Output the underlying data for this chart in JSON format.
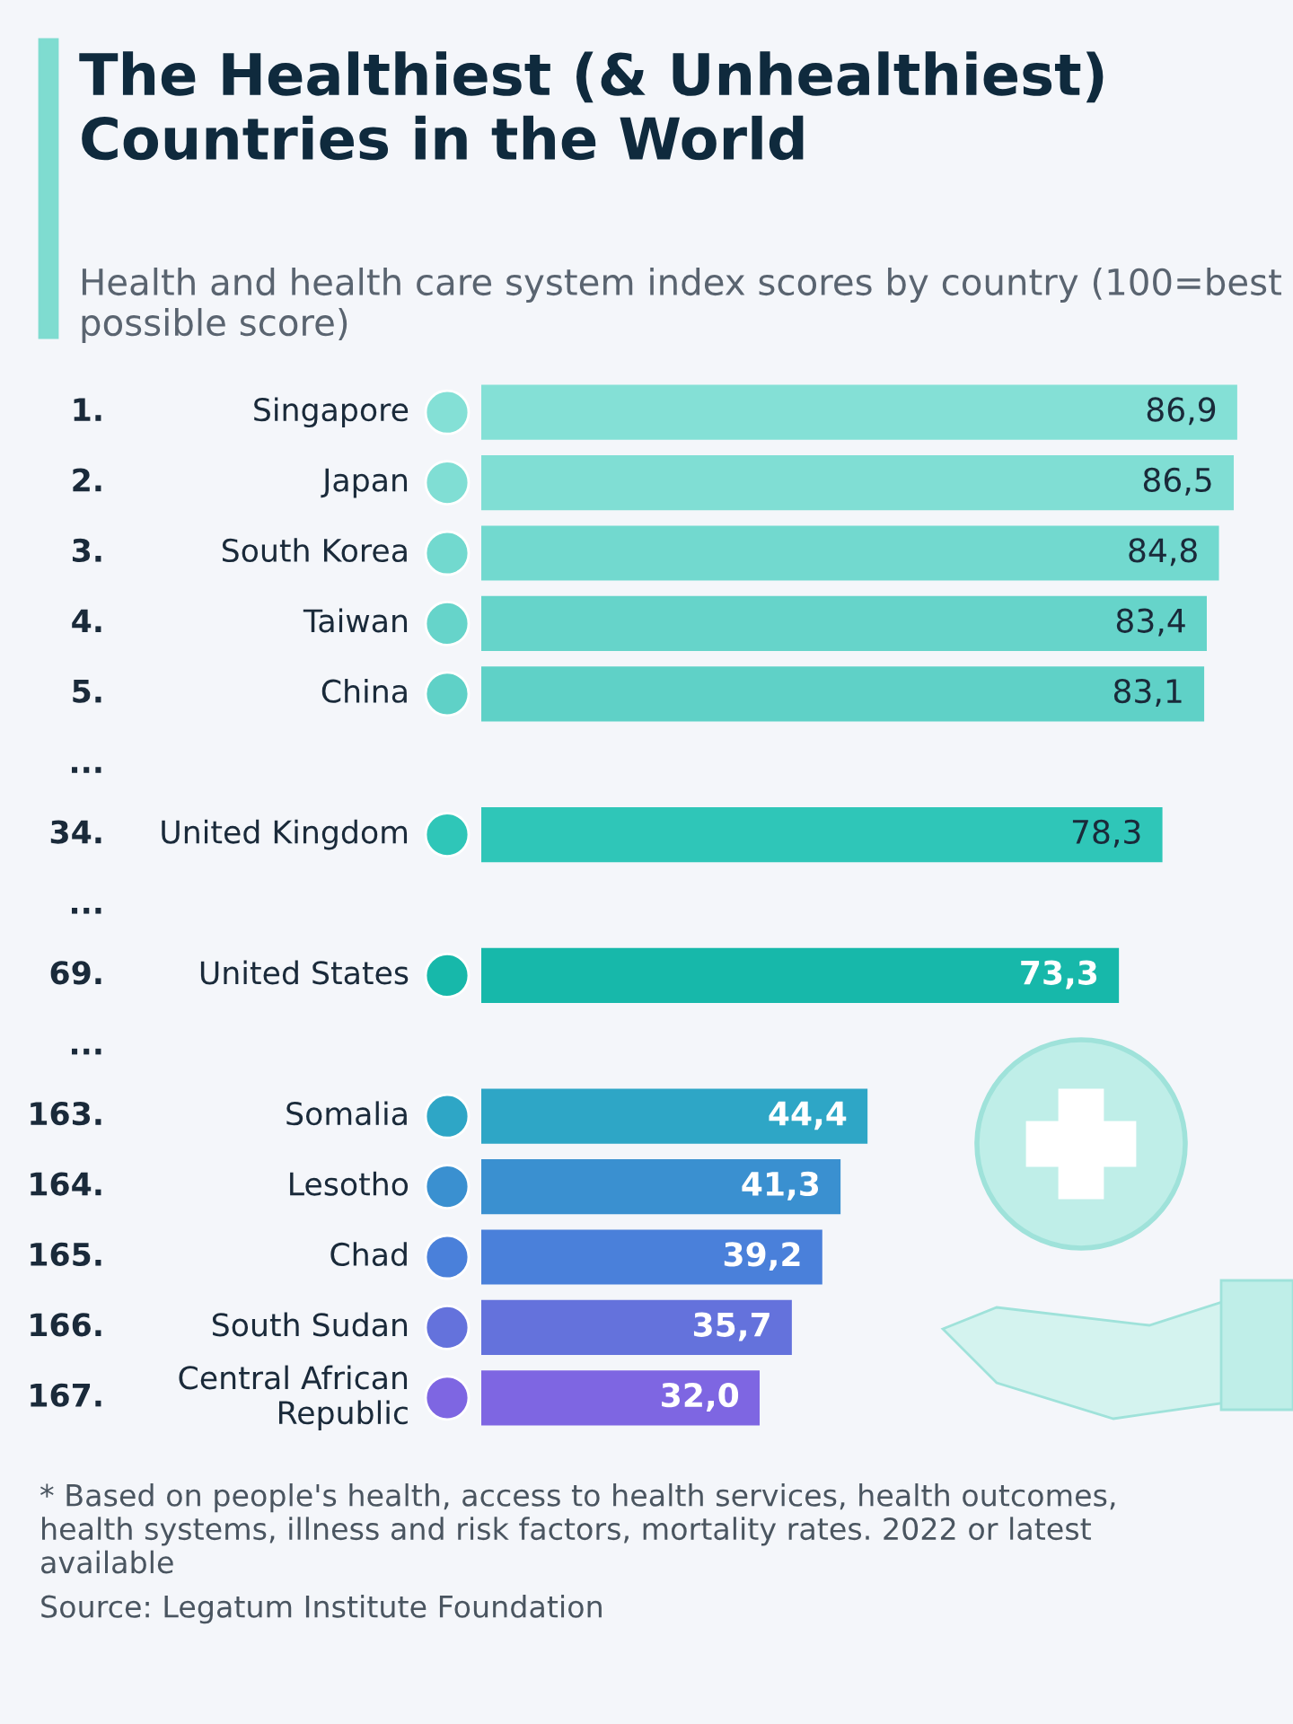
{
  "chart_data": {
    "type": "bar",
    "orientation": "horizontal",
    "title": "The Healthiest (& Unhealthiest) Countries in the World",
    "subtitle": "Health and health care system index scores by country (100=best possible score)",
    "categories": [
      "1. Singapore",
      "2. Japan",
      "3. South Korea",
      "4. Taiwan",
      "5. China",
      "...",
      "34. United Kingdom",
      "...",
      "69. United States",
      "...",
      "163. Somalia",
      "164. Lesotho",
      "165. Chad",
      "166. South Sudan",
      "167. Central African Republic"
    ],
    "values": [
      86.9,
      86.5,
      84.8,
      83.4,
      83.1,
      null,
      78.3,
      null,
      73.3,
      null,
      44.4,
      41.3,
      39.2,
      35.7,
      32.0
    ],
    "value_labels": [
      "86,9",
      "86,5",
      "84,8",
      "83,4",
      "83,1",
      null,
      "78,3",
      null,
      "73,3",
      null,
      "44,4",
      "41,3",
      "39,2",
      "35,7",
      "32,0"
    ],
    "colors": [
      "#84e0d6",
      "#80ded4",
      "#72d9cf",
      "#66d4ca",
      "#5fd1c7",
      null,
      "#2fc6b8",
      null,
      "#17b8aa",
      null,
      "#2ea6c6",
      "#3a90d0",
      "#4a80da",
      "#6472dc",
      "#7e66e2"
    ],
    "annotations": [
      "* Based on people's health, access to health services, health outcomes, health systems, illness and risk factors, mortality rates. 2022 or latest available",
      "Source: Legatum Institute Foundation"
    ],
    "grid": false,
    "legend": false
  }
}
